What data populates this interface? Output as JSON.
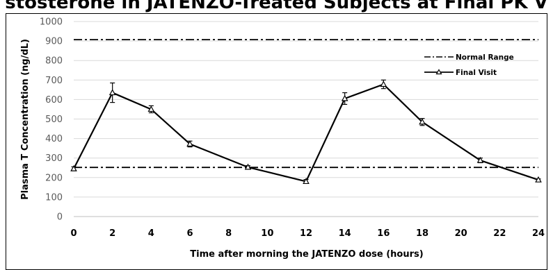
{
  "chart_data": {
    "type": "line",
    "title": "stosterone in JATENZO-Treated Subjects at Final PK V",
    "xlabel": "Time after morning the JATENZO dose (hours)",
    "ylabel": "Plasma T Concentration (ng/dL)",
    "xlim": [
      0,
      24
    ],
    "ylim": [
      0,
      1000
    ],
    "x_ticks": [
      "0",
      "2",
      "4",
      "6",
      "8",
      "10",
      "12",
      "14",
      "16",
      "18",
      "20",
      "22",
      "24"
    ],
    "y_ticks": [
      "0",
      "100",
      "200",
      "300",
      "400",
      "500",
      "600",
      "700",
      "800",
      "900",
      "1000"
    ],
    "grid": "horizontal",
    "legend_position": "top-right",
    "reference_lines": [
      {
        "name": "Normal Range",
        "values": [
          252,
          907
        ],
        "style": "dash-dot"
      }
    ],
    "series": [
      {
        "name": "Final Visit",
        "x": [
          0,
          2,
          4,
          6,
          9,
          12,
          14,
          16,
          18,
          21,
          24
        ],
        "values": [
          245,
          635,
          550,
          372,
          253,
          180,
          605,
          678,
          485,
          288,
          188
        ],
        "error": [
          10,
          50,
          18,
          15,
          8,
          10,
          30,
          22,
          18,
          12,
          5
        ]
      }
    ]
  }
}
